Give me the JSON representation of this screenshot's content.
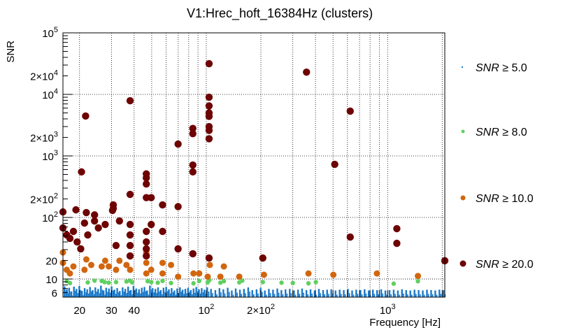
{
  "chart_data": {
    "type": "scatter",
    "title": "V1:Hrec_hoft_16384Hz (clusters)",
    "xlabel": "Frequency [Hz]",
    "ylabel": "SNR",
    "xscale": "log",
    "yscale": "log",
    "xlim": [
      16.2,
      2067
    ],
    "ylim": [
      5.07,
      100000
    ],
    "grid": true,
    "legend_placement": "right",
    "x_ticks": [
      {
        "value": 20,
        "label": "20"
      },
      {
        "value": 30,
        "label": "30"
      },
      {
        "value": 40,
        "label": "40"
      },
      {
        "value": 100,
        "label": "10",
        "exp": "2"
      },
      {
        "value": 200,
        "label": "2×10",
        "exp": "2"
      },
      {
        "value": 1000,
        "label": "10",
        "exp": "3"
      }
    ],
    "y_ticks": [
      {
        "value": 6,
        "label": "6"
      },
      {
        "value": 10,
        "label": "10"
      },
      {
        "value": 20,
        "label": "20"
      },
      {
        "value": 100,
        "label": "10",
        "exp": "2"
      },
      {
        "value": 200,
        "label": "2×10",
        "exp": "2"
      },
      {
        "value": 1000,
        "label": "10",
        "exp": "3"
      },
      {
        "value": 2000,
        "label": "2×10",
        "exp": "3"
      },
      {
        "value": 10000,
        "label": "10",
        "exp": "4"
      },
      {
        "value": 20000,
        "label": "2×10",
        "exp": "4"
      },
      {
        "value": 100000,
        "label": "10",
        "exp": "5"
      }
    ],
    "series": [
      {
        "name": "SNR ≥ 5.0",
        "legend_prefix": "SNR",
        "legend_suffix": " ≥ 5.0",
        "color": "#1a78c8",
        "marker": "dot",
        "x": [
          16.5,
          17,
          17.5,
          18,
          18.6,
          19.2,
          19.9,
          20.6,
          21.3,
          22,
          22.8,
          23.6,
          24.4,
          25.3,
          26.2,
          27.1,
          28,
          29,
          30,
          31.1,
          32.2,
          33.3,
          34.5,
          35.7,
          37,
          38.3,
          39.6,
          41,
          42.5,
          44,
          45.5,
          47.1,
          48.8,
          50.5,
          52.3,
          54.1,
          56,
          58,
          60,
          62.1,
          64.3,
          66.6,
          69,
          71.4,
          73.9,
          76.5,
          79.2,
          82,
          84.9,
          87.9,
          91,
          94.2,
          97.5,
          101,
          106,
          112,
          118,
          124,
          131,
          138,
          145,
          153,
          161,
          170,
          179,
          189,
          199,
          210,
          221,
          233,
          246,
          259,
          273,
          288,
          304,
          320,
          337,
          356,
          375,
          395,
          417,
          440,
          463,
          488,
          515,
          543,
          572,
          603,
          636,
          670,
          707,
          745,
          785,
          828,
          873,
          920,
          970,
          1023,
          1078,
          1137,
          1198,
          1263,
          1332,
          1404,
          1480,
          1560,
          1645,
          1734,
          1828,
          1927,
          2030
        ],
        "y": [
          7.6,
          6.8,
          7.2,
          6.3,
          7.5,
          6.9,
          7.7,
          6.4,
          7.1,
          6.8,
          7.4,
          6.6,
          7.3,
          6.9,
          7.8,
          6.5,
          7.2,
          7,
          7.6,
          6.7,
          7.1,
          6.4,
          7.3,
          6.9,
          7.5,
          6.6,
          7.7,
          7,
          6.8,
          7.2,
          7.4,
          6.5,
          7.8,
          7.1,
          6.9,
          7.3,
          6.6,
          7.2,
          7.4,
          6.8,
          7.1,
          6.5,
          7,
          7.3,
          6.7,
          6.9,
          7.2,
          6.6,
          7,
          7.4,
          6.8,
          7.1,
          6.7,
          7.3,
          6.9,
          6.6,
          7.1,
          6.8,
          7.2,
          6.5,
          7,
          6.7,
          6.9,
          7.3,
          6.6,
          6.8,
          7.2,
          6.5,
          6.9,
          6.7,
          7,
          6.6,
          6.8,
          6.9,
          6.5,
          6.7,
          7,
          6.6,
          6.8,
          6.5,
          6.9,
          6.6,
          6.7,
          6.8,
          6.5,
          6.7,
          6.6,
          6.9,
          6.5,
          6.7,
          6.6,
          6.8,
          6.5,
          6.7,
          6.6,
          6.8,
          6.5,
          6.6,
          6.7,
          6.5,
          6.8,
          6.6,
          6.5,
          6.7,
          6.6,
          6.5,
          6.7,
          6.6,
          6.5,
          6.7,
          6.6
        ]
      },
      {
        "name": "SNR ≥ 8.0",
        "legend_prefix": "SNR",
        "legend_suffix": " ≥ 8.0",
        "color": "#5fd060",
        "marker": "circle-small",
        "x": [
          17,
          17.7,
          22.2,
          24.2,
          26.5,
          27.5,
          29,
          31.8,
          36.3,
          38,
          39,
          47.5,
          49.7,
          54,
          57.4,
          63.9,
          85,
          91.4,
          101.8,
          104,
          119.6,
          125,
          152,
          158,
          205,
          260,
          300,
          366,
          402,
          1080,
          1469
        ],
        "y": [
          9.2,
          8.6,
          8.8,
          9.4,
          9.3,
          8.9,
          8.7,
          8.9,
          9.1,
          9.4,
          8.8,
          9.2,
          8.9,
          8.7,
          9.3,
          8.6,
          8.5,
          9.3,
          8.8,
          9.6,
          8.7,
          9.2,
          8.8,
          9.4,
          8.9,
          8.7,
          8.6,
          8.5,
          8.9,
          8.4,
          9.2
        ]
      },
      {
        "name": "SNR ≥ 10.0",
        "legend_prefix": "SNR",
        "legend_suffix": " ≥ 10.0",
        "color": "#d1660f",
        "marker": "circle",
        "x": [
          16.2,
          16.2,
          17,
          17.7,
          18.5,
          21.3,
          21.8,
          23.2,
          26.5,
          27.7,
          29,
          31.8,
          33.2,
          36.3,
          38,
          38,
          46.7,
          46.7,
          46.7,
          49.7,
          57.4,
          57.4,
          63.9,
          69.9,
          85,
          91.4,
          101.8,
          104.6,
          119.6,
          125,
          152,
          208,
          366,
          502,
          873,
          1469
        ],
        "y": [
          27,
          18.3,
          14.1,
          12.3,
          16,
          14.1,
          20.8,
          16.9,
          16,
          19.8,
          16,
          14.1,
          19.8,
          16.9,
          23.7,
          14.1,
          27,
          18.3,
          12.3,
          14.1,
          18.3,
          12.3,
          16.9,
          10.9,
          12.3,
          12.3,
          10.9,
          16.9,
          10.9,
          16,
          10.9,
          11.7,
          12.3,
          11.7,
          12.3,
          11.2
        ]
      },
      {
        "name": "SNR ≥ 20.0",
        "legend_prefix": "SNR",
        "legend_suffix": " ≥ 20.0",
        "color": "#6e0303",
        "marker": "circle-large",
        "x": [
          103.6,
          357,
          103.6,
          103.6,
          103.6,
          103.6,
          103.6,
          103.6,
          103.6,
          38,
          21.6,
          622,
          69.9,
          84.3,
          84.3,
          84.3,
          84.3,
          511,
          20.5,
          46.7,
          46.7,
          46.7,
          38,
          46.7,
          49.7,
          57.4,
          69.9,
          30.7,
          30.7,
          16.2,
          19.1,
          21.8,
          24.2,
          16.2,
          17,
          17.7,
          18.5,
          19.4,
          20.3,
          21.3,
          22.2,
          24.2,
          25.4,
          27.7,
          30.4,
          31.8,
          33.2,
          38,
          38,
          38,
          38,
          46.7,
          46.7,
          46.7,
          46.7,
          49.7,
          57.4,
          69.9,
          84.3,
          103.6,
          205,
          622,
          1124,
          1124,
          2067
        ],
        "y": [
          31600,
          23000,
          9000,
          6500,
          5000,
          4400,
          3000,
          2600,
          1900,
          7900,
          4450,
          5350,
          1560,
          2800,
          2300,
          710,
          550,
          730,
          550,
          510,
          440,
          350,
          237,
          210,
          210,
          160,
          150,
          160,
          140,
          123,
          133,
          120,
          110,
          67.6,
          52,
          45.7,
          59.3,
          40,
          30.9,
          81,
          52,
          87.7,
          67.6,
          77,
          130,
          35,
          87.7,
          77,
          52,
          35,
          23.7,
          59.3,
          40,
          30.9,
          23.7,
          77,
          59.3,
          30.9,
          25.7,
          21.9,
          21.9,
          48,
          65.8,
          38,
          19.8
        ]
      }
    ]
  }
}
